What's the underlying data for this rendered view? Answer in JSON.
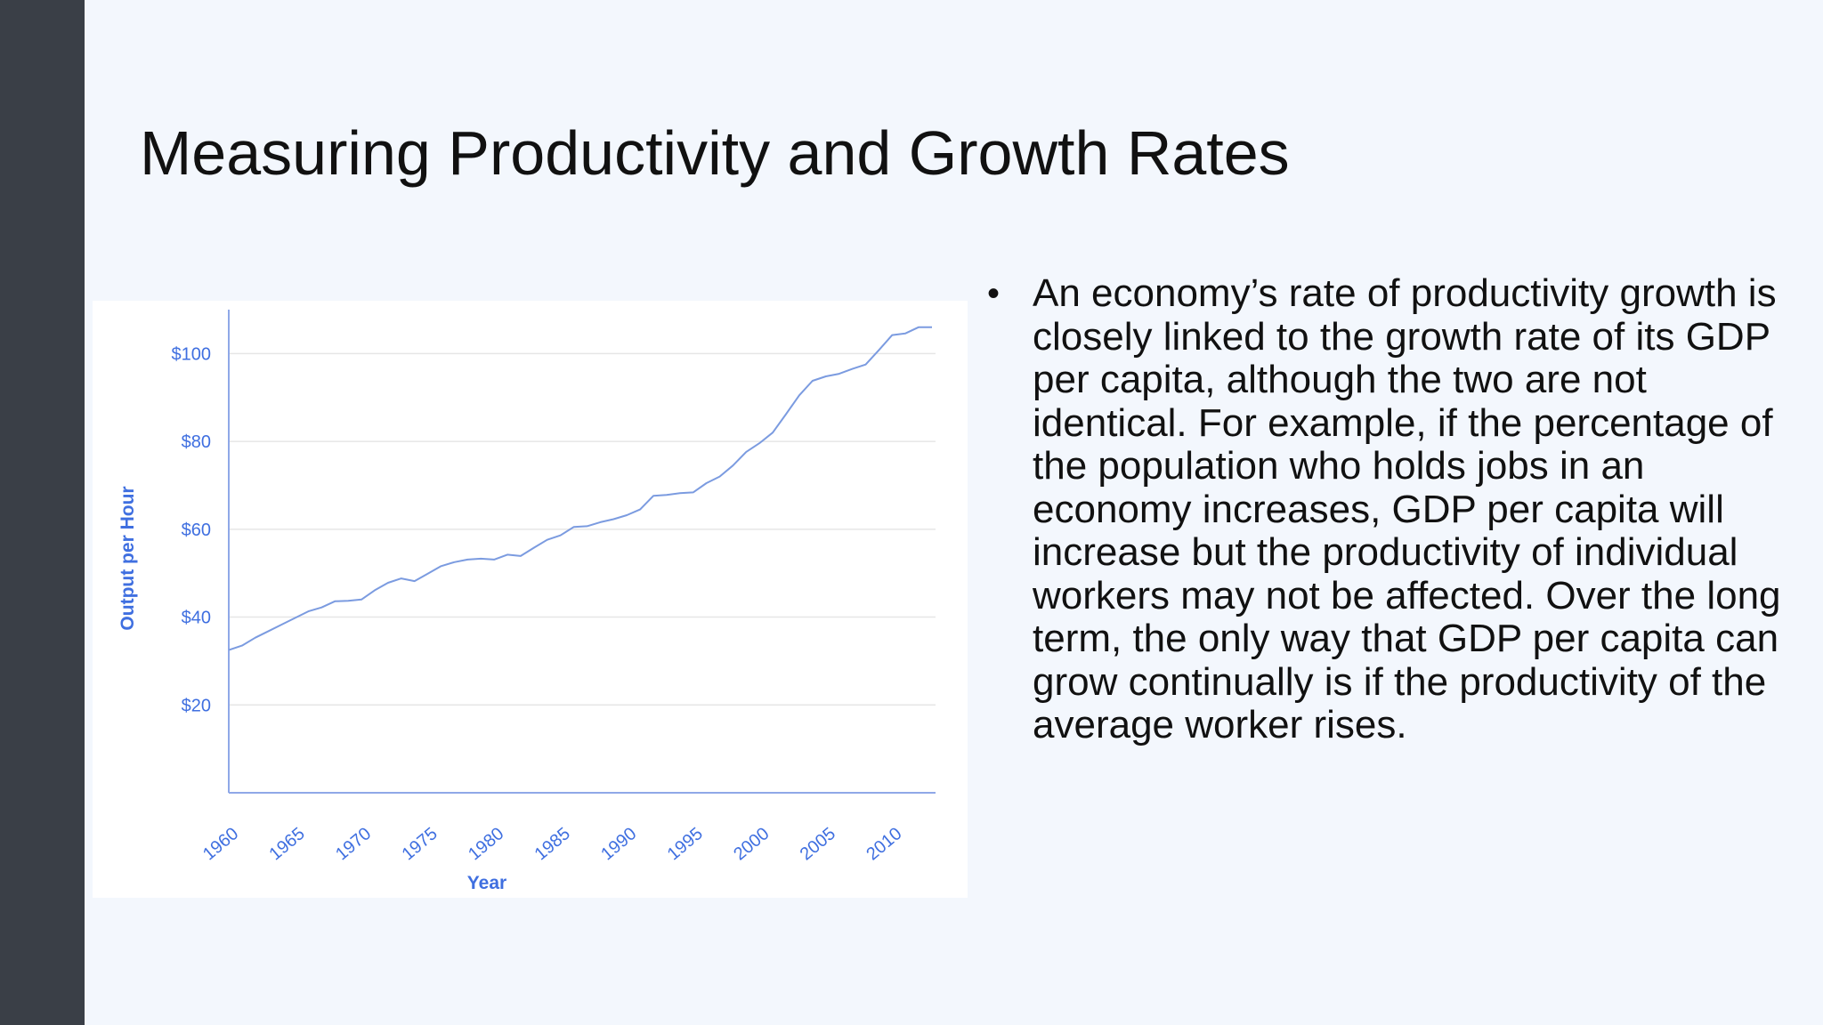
{
  "slide": {
    "title": "Measuring Productivity and Growth Rates",
    "bullets": [
      "An economy’s rate of productivity growth is closely linked to the growth rate of its GDP per capita, although the two are not identical. For example, if the percentage of the population who holds jobs in an economy increases, GDP per capita will increase but the productivity of individual workers may not be affected. Over the long term, the only way that GDP per capita can grow continually is if the productivity of the average worker rises."
    ],
    "colors": {
      "sidebar": "#3a3f47",
      "background": "#f3f7fd",
      "text": "#111111"
    }
  },
  "chart_data": {
    "type": "line",
    "title": "",
    "xlabel": "Year",
    "ylabel": "Output per Hour",
    "xlim": [
      1960,
      2013
    ],
    "ylim": [
      0,
      110
    ],
    "xticks": [
      "1960",
      "1965",
      "1970",
      "1975",
      "1980",
      "1985",
      "1990",
      "1995",
      "2000",
      "2005",
      "2010"
    ],
    "yticks": [
      "$20",
      "$40",
      "$60",
      "$80",
      "$100"
    ],
    "grid": true,
    "colors": {
      "line": "#7b9be0",
      "labels": "#3f6fe0",
      "grid": "#e6e6e6",
      "axis": "#8fa8e8"
    },
    "series": [
      {
        "x": [
          1960,
          1961,
          1962,
          1963,
          1964,
          1965,
          1966,
          1967,
          1968,
          1969,
          1970,
          1971,
          1972,
          1973,
          1974,
          1975,
          1976,
          1977,
          1978,
          1979,
          1980,
          1981,
          1982,
          1983,
          1984,
          1985,
          1986,
          1987,
          1988,
          1989,
          1990,
          1991,
          1992,
          1993,
          1994,
          1995,
          1996,
          1997,
          1998,
          1999,
          2000,
          2001,
          2002,
          2003,
          2004,
          2005,
          2006,
          2007,
          2008,
          2009,
          2010,
          2011,
          2012,
          2013
        ],
        "values": [
          32.5,
          33.5,
          35.3,
          36.8,
          38.3,
          39.8,
          41.3,
          42.2,
          43.6,
          43.7,
          44.0,
          46.1,
          47.8,
          48.8,
          48.2,
          49.9,
          51.6,
          52.5,
          53.1,
          53.3,
          53.1,
          54.2,
          53.9,
          55.8,
          57.6,
          58.6,
          60.5,
          60.7,
          61.6,
          62.3,
          63.2,
          64.5,
          67.6,
          67.8,
          68.2,
          68.4,
          70.5,
          72.0,
          74.5,
          77.6,
          79.6,
          82.0,
          86.2,
          90.5,
          93.8,
          94.8,
          95.4,
          96.5,
          97.5,
          100.8,
          104.2,
          104.6,
          106.0,
          106.0
        ]
      }
    ]
  }
}
